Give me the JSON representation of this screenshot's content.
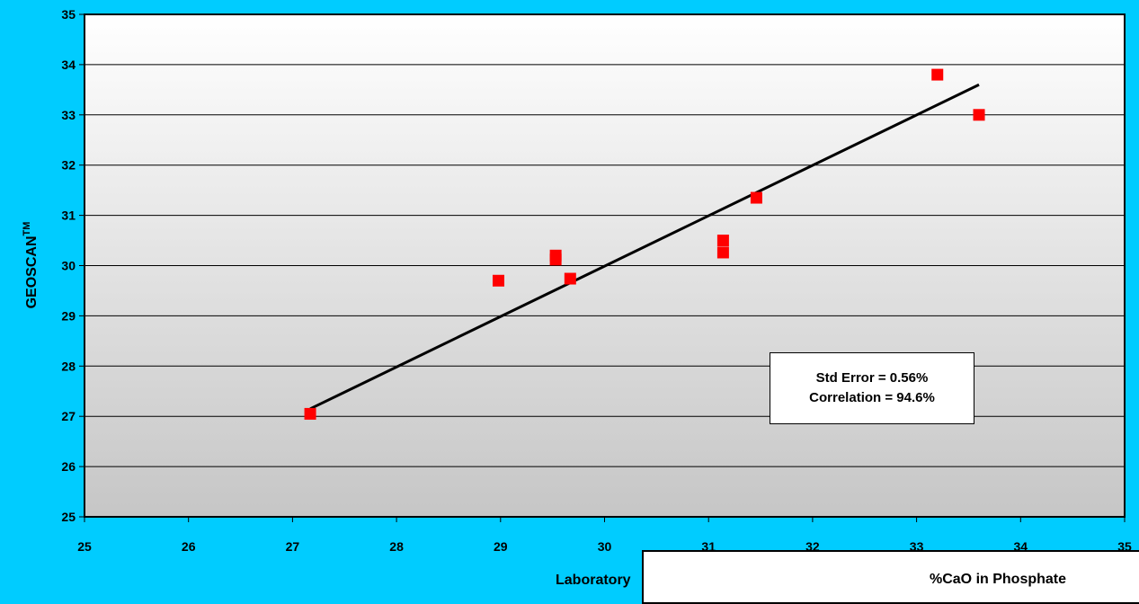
{
  "chart_data": {
    "type": "scatter",
    "ylabel_main": "GEOSCAN",
    "ylabel_sup": "TM",
    "xlabel": "Laboratory",
    "xlim": [
      25,
      35
    ],
    "ylim": [
      25,
      35
    ],
    "x_ticks": [
      25,
      26,
      27,
      28,
      29,
      30,
      31,
      32,
      33,
      34,
      35
    ],
    "y_ticks": [
      25,
      26,
      27,
      28,
      29,
      30,
      31,
      32,
      33,
      34,
      35
    ],
    "grid": "horizontal",
    "marker_color": "#FF0000",
    "trendline_color": "#000000",
    "points": [
      {
        "x": 27.17,
        "y": 27.05
      },
      {
        "x": 28.98,
        "y": 29.7
      },
      {
        "x": 29.53,
        "y": 30.2
      },
      {
        "x": 29.53,
        "y": 30.12
      },
      {
        "x": 29.67,
        "y": 29.74
      },
      {
        "x": 31.14,
        "y": 30.5
      },
      {
        "x": 31.14,
        "y": 30.26
      },
      {
        "x": 31.46,
        "y": 31.35
      },
      {
        "x": 33.2,
        "y": 33.8
      },
      {
        "x": 33.6,
        "y": 33.0
      }
    ],
    "trendline": {
      "x": [
        27.17,
        33.6
      ],
      "y": [
        27.15,
        33.6
      ]
    },
    "stats_box": [
      "Std Error = 0.56%",
      "Correlation = 94.6%"
    ]
  },
  "overlay": {
    "title": "%CaO in Phosphate"
  }
}
